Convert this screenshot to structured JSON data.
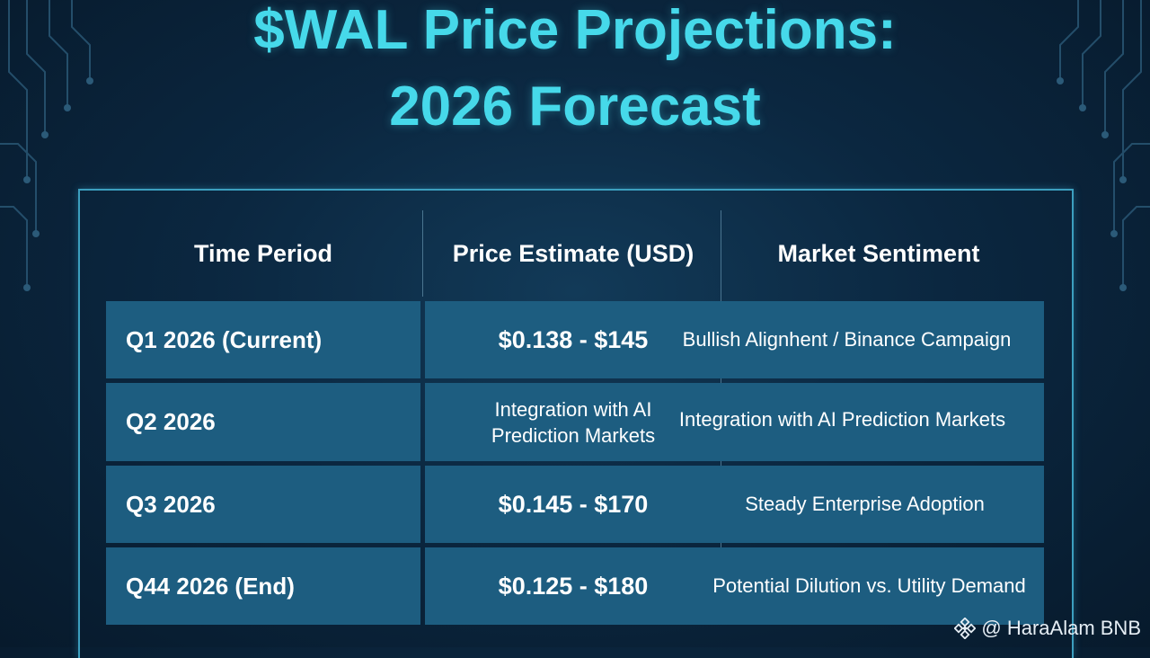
{
  "title": {
    "line1": "$WAL Price Projections:",
    "line2": "2026 Forecast"
  },
  "table": {
    "headers": [
      "Time Period",
      "Price Estimate (USD)",
      "Market Sentiment"
    ],
    "rows": [
      {
        "period": "Q1 2026 (Current)",
        "price": "$0.138 - $145",
        "sentiment": "Bullish Alignhent / Binance Campaign"
      },
      {
        "period": "Q2 2026",
        "price": "Integration with AI Prediction Markets",
        "sentiment": "Integration with AI Prediction Markets"
      },
      {
        "period": "Q3 2026",
        "price": "$0.145 - $170",
        "sentiment": "Steady Enterprise Adoption"
      },
      {
        "period": "Q44 2026 (End)",
        "price": "$0.125 - $180",
        "sentiment": "Potential Dilution vs. Utility Demand"
      }
    ]
  },
  "watermark": {
    "icon": "binance-icon",
    "text": "@ HaraAlam BNB"
  },
  "colors": {
    "title": "#46d9ea",
    "row_bg": "#1d5d80",
    "frame": "#3c9fbf",
    "background": "#0b2740"
  }
}
